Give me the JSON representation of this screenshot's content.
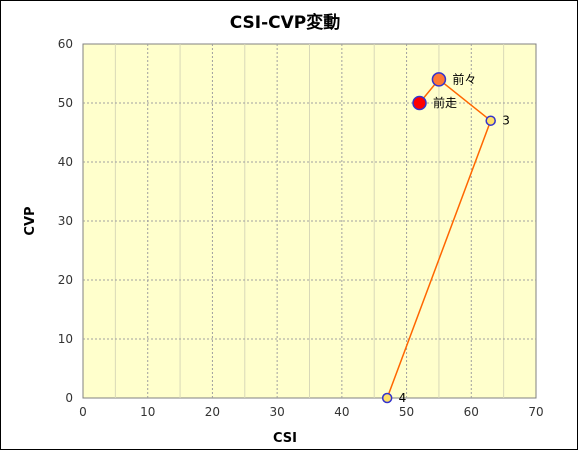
{
  "chart_data": {
    "type": "scatter",
    "title": "CSI-CVP変動",
    "xlabel": "CSI",
    "ylabel": "CVP",
    "xlim": [
      0,
      70
    ],
    "ylim": [
      0,
      60
    ],
    "xticks": [
      0,
      10,
      20,
      30,
      40,
      50,
      60,
      70
    ],
    "yticks": [
      0,
      10,
      20,
      30,
      40,
      50,
      60
    ],
    "grid": true,
    "plot_background": "#ffffcc",
    "line_color": "#ff6600",
    "points": [
      {
        "label": "前走",
        "x": 52,
        "y": 50,
        "fill": "#ff0000",
        "stroke": "#3333cc",
        "size": "large"
      },
      {
        "label": "前々",
        "x": 55,
        "y": 54,
        "fill": "#ff7733",
        "stroke": "#3333cc",
        "size": "large"
      },
      {
        "label": "3",
        "x": 63,
        "y": 47,
        "fill": "#ffe066",
        "stroke": "#3333cc",
        "size": "small"
      },
      {
        "label": "4",
        "x": 47,
        "y": 0,
        "fill": "#ffe066",
        "stroke": "#3333cc",
        "size": "small"
      }
    ]
  }
}
